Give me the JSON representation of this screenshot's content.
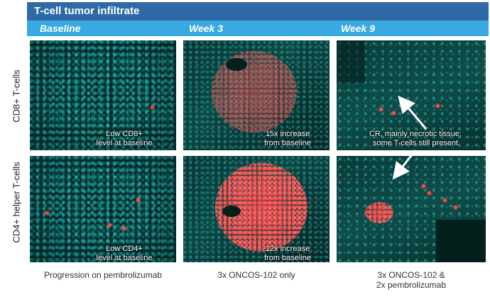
{
  "title": "T-cell tumor infiltrate",
  "columns": [
    "Baseline",
    "Week 3",
    "Week 9"
  ],
  "rows": [
    "CD8+ T-cells",
    "CD4+ helper T-cells"
  ],
  "panels": {
    "cd8_baseline": [
      "Low CD8+",
      "level at baseline"
    ],
    "cd8_week3": [
      "15x increase",
      "from baseline"
    ],
    "cd8_week9": [
      "CR, mainly necrotic tissue;",
      "some T-cells still present"
    ],
    "cd4_baseline": [
      "Low CD4+",
      "level at baseline"
    ],
    "cd4_week3": [
      "12x increase",
      "from baseline"
    ]
  },
  "bottom_captions": {
    "baseline": "Progression on pembrolizumab",
    "week3": "3x ONCOS-102 only",
    "week9": [
      "3x ONCOS-102 &",
      "2x pembrolizumab"
    ]
  },
  "colors": {
    "title_bar": "#2f6aa6",
    "header_band": "#39a9e2",
    "nuclei": "#2ec8c8",
    "tcell_stain": "#ff4a4a"
  }
}
